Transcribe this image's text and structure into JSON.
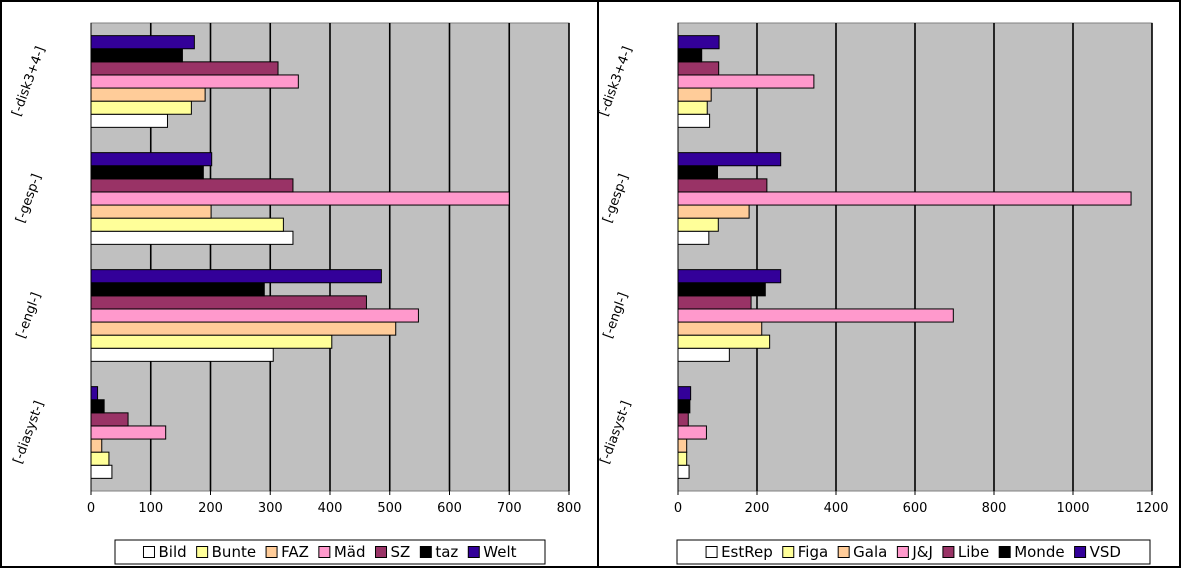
{
  "chart_data": [
    {
      "type": "bar",
      "orientation": "horizontal",
      "categories": [
        "[-diasyst-]",
        "[-engl-]",
        "[-gesp-]",
        "[-disk3+4-]"
      ],
      "xlim": [
        0,
        800
      ],
      "xticks": [
        0,
        100,
        200,
        300,
        400,
        500,
        600,
        700,
        800
      ],
      "grid": true,
      "legend_position": "bottom",
      "series": [
        {
          "name": "Bild",
          "color": "#ffffff",
          "values": [
            35,
            305,
            338,
            128
          ]
        },
        {
          "name": "Bunte",
          "color": "#ffff99",
          "values": [
            30,
            403,
            322,
            168
          ]
        },
        {
          "name": "FAZ",
          "color": "#ffcc99",
          "values": [
            18,
            510,
            201,
            191
          ]
        },
        {
          "name": "Mäd",
          "color": "#ff99cc",
          "values": [
            125,
            548,
            700,
            347
          ]
        },
        {
          "name": "SZ",
          "color": "#993366",
          "values": [
            62,
            461,
            338,
            313
          ]
        },
        {
          "name": "taz",
          "color": "#000000",
          "values": [
            22,
            290,
            188,
            153
          ]
        },
        {
          "name": "Welt",
          "color": "#330099",
          "values": [
            11,
            486,
            202,
            173
          ]
        }
      ]
    },
    {
      "type": "bar",
      "orientation": "horizontal",
      "categories": [
        "[-diasyst-]",
        "[-engl-]",
        "[-gesp-]",
        "[-disk3+4-]"
      ],
      "xlim": [
        0,
        1200
      ],
      "xticks": [
        0,
        200,
        400,
        600,
        800,
        1000,
        1200
      ],
      "grid": true,
      "legend_position": "bottom",
      "series": [
        {
          "name": "EstRep",
          "color": "#ffffff",
          "values": [
            28,
            130,
            78,
            80
          ]
        },
        {
          "name": "Figa",
          "color": "#ffff99",
          "values": [
            22,
            232,
            102,
            74
          ]
        },
        {
          "name": "Gala",
          "color": "#ffcc99",
          "values": [
            22,
            212,
            180,
            84
          ]
        },
        {
          "name": "J&J",
          "color": "#ff99cc",
          "values": [
            72,
            697,
            1147,
            344
          ]
        },
        {
          "name": "Libe",
          "color": "#993366",
          "values": [
            26,
            185,
            225,
            103
          ]
        },
        {
          "name": "Monde",
          "color": "#000000",
          "values": [
            30,
            221,
            100,
            60
          ]
        },
        {
          "name": "VSD",
          "color": "#330099",
          "values": [
            32,
            260,
            260,
            104
          ]
        }
      ]
    }
  ]
}
